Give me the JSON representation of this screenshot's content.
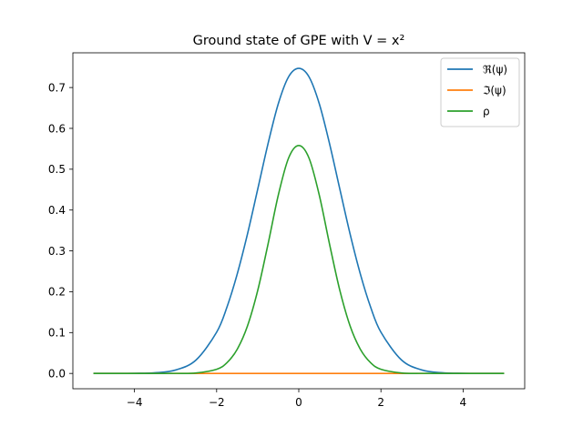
{
  "chart_data": {
    "type": "line",
    "title": "Ground state of GPE with V = x²",
    "xlabel": "",
    "ylabel": "",
    "xlim": [
      -5.5,
      5.5
    ],
    "ylim": [
      -0.0375,
      0.785
    ],
    "xticks": [
      -4,
      -2,
      0,
      2,
      4
    ],
    "xtick_labels": [
      "−4",
      "−2",
      "0",
      "2",
      "4"
    ],
    "yticks": [
      0.0,
      0.1,
      0.2,
      0.3,
      0.4,
      0.5,
      0.6,
      0.7
    ],
    "ytick_labels": [
      "0.0",
      "0.1",
      "0.2",
      "0.3",
      "0.4",
      "0.5",
      "0.6",
      "0.7"
    ],
    "grid": false,
    "legend_position": "top-right",
    "x": [
      -5.0,
      -4.5,
      -4.0,
      -3.5,
      -3.0,
      -2.5,
      -2.0,
      -1.75,
      -1.5,
      -1.25,
      -1.0,
      -0.75,
      -0.5,
      -0.25,
      0.0,
      0.25,
      0.5,
      0.75,
      1.0,
      1.25,
      1.5,
      1.75,
      2.0,
      2.5,
      3.0,
      3.5,
      4.0,
      4.5,
      5.0
    ],
    "series": [
      {
        "name": "ℜ(ψ)",
        "color": "#1f77b4",
        "values": [
          0.0,
          0.0,
          0.0003,
          0.0016,
          0.0083,
          0.033,
          0.101,
          0.162,
          0.243,
          0.341,
          0.451,
          0.562,
          0.66,
          0.726,
          0.747,
          0.726,
          0.66,
          0.562,
          0.451,
          0.341,
          0.243,
          0.162,
          0.101,
          0.033,
          0.0083,
          0.0016,
          0.0003,
          0.0,
          0.0
        ]
      },
      {
        "name": "ℑ(ψ)",
        "color": "#ff7f0e",
        "values": [
          0.0,
          0.0,
          0.0,
          0.0,
          0.0,
          0.0,
          0.0,
          0.0,
          0.0,
          0.0,
          0.0,
          0.0,
          0.0,
          0.0,
          0.0,
          0.0,
          0.0,
          0.0,
          0.0,
          0.0,
          0.0,
          0.0,
          0.0,
          0.0,
          0.0,
          0.0,
          0.0,
          0.0,
          0.0
        ]
      },
      {
        "name": "ρ",
        "color": "#2ca02c",
        "values": [
          0.0,
          0.0,
          0.0,
          0.0,
          0.0001,
          0.0011,
          0.0102,
          0.0262,
          0.059,
          0.116,
          0.203,
          0.316,
          0.436,
          0.527,
          0.558,
          0.527,
          0.436,
          0.316,
          0.203,
          0.116,
          0.059,
          0.0262,
          0.0102,
          0.0011,
          0.0001,
          0.0,
          0.0,
          0.0,
          0.0
        ]
      }
    ]
  }
}
